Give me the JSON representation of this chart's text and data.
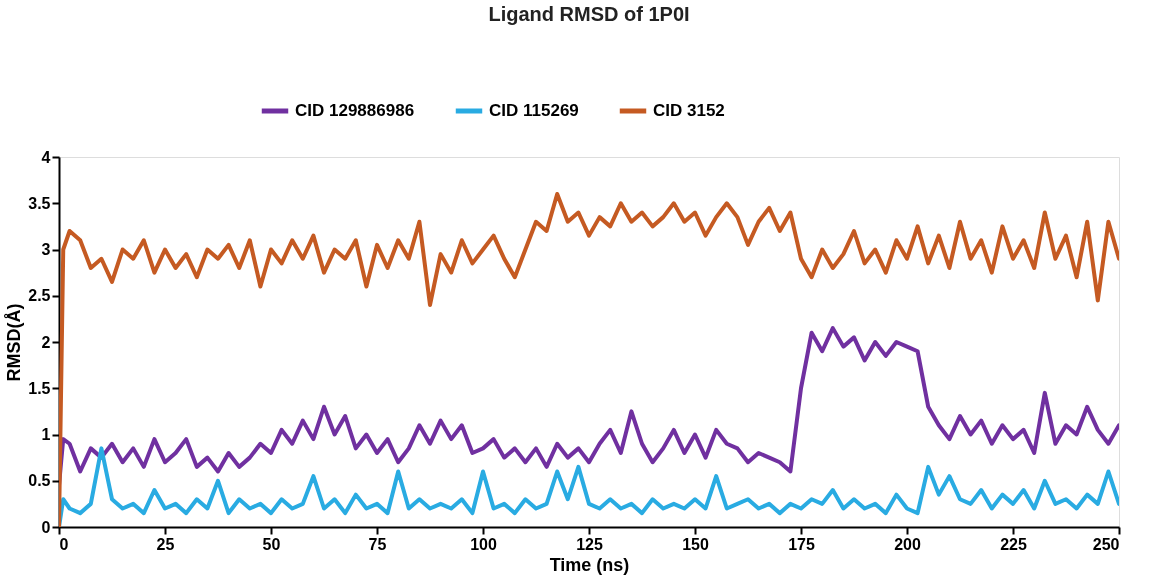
{
  "chart_data": {
    "type": "line",
    "title": "Ligand RMSD of 1P0I",
    "xlabel": "Time (ns)",
    "ylabel": "RMSD(Å)",
    "x": [
      0,
      1,
      2.5,
      5,
      7.5,
      10,
      12.5,
      15,
      17.5,
      20,
      22.5,
      25,
      27.5,
      30,
      32.5,
      35,
      37.5,
      40,
      42.5,
      45,
      47.5,
      50,
      52.5,
      55,
      57.5,
      60,
      62.5,
      65,
      67.5,
      70,
      72.5,
      75,
      77.5,
      80,
      82.5,
      85,
      87.5,
      90,
      92.5,
      95,
      97.5,
      100,
      102.5,
      105,
      107.5,
      110,
      112.5,
      115,
      117.5,
      120,
      122.5,
      125,
      127.5,
      130,
      132.5,
      135,
      137.5,
      140,
      142.5,
      145,
      147.5,
      150,
      152.5,
      155,
      157.5,
      160,
      162.5,
      165,
      167.5,
      170,
      172.5,
      175,
      177.5,
      180,
      182.5,
      185,
      187.5,
      190,
      192.5,
      195,
      197.5,
      200,
      202.5,
      205,
      207.5,
      210,
      212.5,
      215,
      217.5,
      220,
      222.5,
      225,
      227.5,
      230,
      232.5,
      235,
      237.5,
      240,
      242.5,
      245,
      247.5,
      250
    ],
    "series": [
      {
        "name": "CID 129886986",
        "color": "#7030a0",
        "values": [
          0.45,
          0.95,
          0.9,
          0.6,
          0.85,
          0.75,
          0.9,
          0.7,
          0.85,
          0.65,
          0.95,
          0.7,
          0.8,
          0.95,
          0.65,
          0.75,
          0.6,
          0.8,
          0.65,
          0.75,
          0.9,
          0.8,
          1.05,
          0.9,
          1.15,
          0.95,
          1.3,
          1.0,
          1.2,
          0.85,
          1.0,
          0.8,
          0.95,
          0.7,
          0.85,
          1.1,
          0.9,
          1.15,
          0.95,
          1.1,
          0.8,
          0.85,
          0.95,
          0.75,
          0.85,
          0.7,
          0.85,
          0.65,
          0.9,
          0.75,
          0.85,
          0.7,
          0.9,
          1.05,
          0.8,
          1.25,
          0.9,
          0.7,
          0.85,
          1.05,
          0.8,
          1.0,
          0.75,
          1.05,
          0.9,
          0.85,
          0.7,
          0.8,
          0.75,
          0.7,
          0.6,
          1.5,
          2.1,
          1.9,
          2.15,
          1.95,
          2.05,
          1.8,
          2.0,
          1.85,
          2.0,
          1.95,
          1.9,
          1.3,
          1.1,
          0.95,
          1.2,
          1.0,
          1.15,
          0.9,
          1.1,
          0.95,
          1.05,
          0.8,
          1.45,
          0.9,
          1.1,
          1.0,
          1.3,
          1.05,
          0.9,
          1.1
        ]
      },
      {
        "name": "CID 115269",
        "color": "#29abe2",
        "values": [
          0.0,
          0.3,
          0.2,
          0.15,
          0.25,
          0.85,
          0.3,
          0.2,
          0.25,
          0.15,
          0.4,
          0.2,
          0.25,
          0.15,
          0.3,
          0.2,
          0.5,
          0.15,
          0.3,
          0.2,
          0.25,
          0.15,
          0.3,
          0.2,
          0.25,
          0.55,
          0.2,
          0.3,
          0.15,
          0.35,
          0.2,
          0.25,
          0.15,
          0.6,
          0.2,
          0.3,
          0.2,
          0.25,
          0.2,
          0.3,
          0.15,
          0.6,
          0.2,
          0.25,
          0.15,
          0.3,
          0.2,
          0.25,
          0.6,
          0.3,
          0.65,
          0.25,
          0.2,
          0.3,
          0.2,
          0.25,
          0.15,
          0.3,
          0.2,
          0.25,
          0.2,
          0.3,
          0.2,
          0.55,
          0.2,
          0.25,
          0.3,
          0.2,
          0.25,
          0.15,
          0.25,
          0.2,
          0.3,
          0.25,
          0.4,
          0.2,
          0.3,
          0.2,
          0.25,
          0.15,
          0.35,
          0.2,
          0.15,
          0.65,
          0.35,
          0.55,
          0.3,
          0.25,
          0.4,
          0.2,
          0.35,
          0.25,
          0.4,
          0.2,
          0.5,
          0.25,
          0.3,
          0.2,
          0.35,
          0.25,
          0.6,
          0.25
        ]
      },
      {
        "name": "CID 3152",
        "color": "#c55a22",
        "values": [
          0,
          3.0,
          3.2,
          3.1,
          2.8,
          2.9,
          2.65,
          3.0,
          2.9,
          3.1,
          2.75,
          3.0,
          2.8,
          2.95,
          2.7,
          3.0,
          2.9,
          3.05,
          2.8,
          3.1,
          2.6,
          3.0,
          2.85,
          3.1,
          2.9,
          3.15,
          2.75,
          3.0,
          2.9,
          3.1,
          2.6,
          3.05,
          2.8,
          3.1,
          2.9,
          3.3,
          2.4,
          2.95,
          2.75,
          3.1,
          2.85,
          3.0,
          3.15,
          2.9,
          2.7,
          3.0,
          3.3,
          3.2,
          3.6,
          3.3,
          3.4,
          3.15,
          3.35,
          3.25,
          3.5,
          3.3,
          3.4,
          3.25,
          3.35,
          3.5,
          3.3,
          3.4,
          3.15,
          3.35,
          3.5,
          3.35,
          3.05,
          3.3,
          3.45,
          3.2,
          3.4,
          2.9,
          2.7,
          3.0,
          2.8,
          2.95,
          3.2,
          2.85,
          3.0,
          2.75,
          3.1,
          2.9,
          3.25,
          2.85,
          3.15,
          2.8,
          3.3,
          2.9,
          3.1,
          2.75,
          3.25,
          2.9,
          3.1,
          2.8,
          3.4,
          2.9,
          3.15,
          2.7,
          3.3,
          2.45,
          3.3,
          2.9
        ]
      }
    ],
    "xlim": [
      0,
      250
    ],
    "xticks": [
      0,
      25,
      50,
      75,
      100,
      125,
      150,
      175,
      200,
      225,
      250
    ],
    "ylim": [
      0,
      4
    ],
    "yticks": [
      0,
      0.5,
      1,
      1.5,
      2,
      2.5,
      3,
      3.5,
      4
    ],
    "grid": false,
    "legend": "top",
    "marker": "none",
    "line_style": "solid"
  }
}
